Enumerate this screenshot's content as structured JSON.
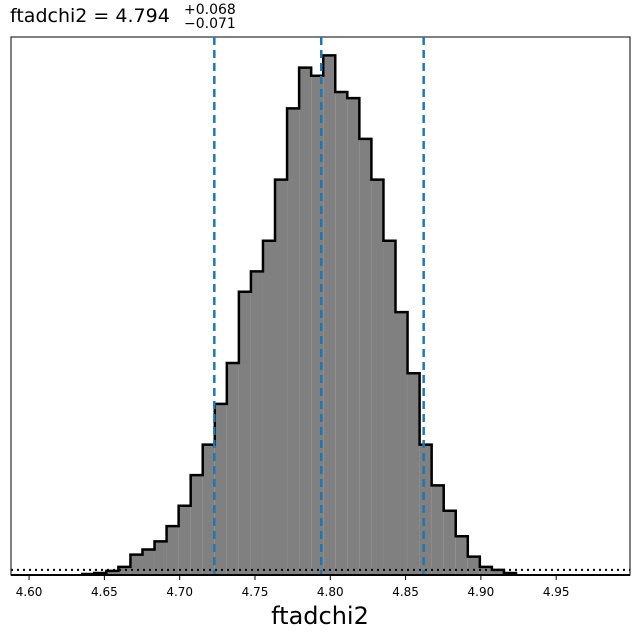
{
  "chart_data": {
    "type": "histogram",
    "title": {
      "parameter": "ftadchi2",
      "equals": "=",
      "value": "4.794",
      "upper_err": "+0.068",
      "lower_err": "−0.071"
    },
    "xlabel": "ftadchi2",
    "ylabel": "",
    "xlim": [
      4.588,
      4.999
    ],
    "ylim": [
      0,
      528
    ],
    "xticks": [
      4.6,
      4.65,
      4.7,
      4.75,
      4.8,
      4.85,
      4.9,
      4.95
    ],
    "xtick_labels": [
      "4.60",
      "4.65",
      "4.70",
      "4.75",
      "4.80",
      "4.85",
      "4.90",
      "4.95"
    ],
    "yticks_shown": false,
    "grid": false,
    "bin_edges": [
      4.6353,
      4.6433,
      4.6513,
      4.6593,
      4.6673,
      4.6753,
      4.6833,
      4.6913,
      4.6993,
      4.7073,
      4.7153,
      4.7233,
      4.7313,
      4.7393,
      4.7473,
      4.7553,
      4.7633,
      4.7713,
      4.7793,
      4.7873,
      4.7953,
      4.8033,
      4.8113,
      4.8193,
      4.8273,
      4.8353,
      4.8433,
      4.8513,
      4.8593,
      4.8673,
      4.8753,
      4.8833,
      4.8913,
      4.8993,
      4.9073,
      4.9153,
      4.9233
    ],
    "counts": [
      1,
      2,
      4,
      8,
      20,
      25,
      33,
      48,
      68,
      98,
      128,
      168,
      208,
      278,
      298,
      328,
      388,
      458,
      498,
      490,
      510,
      474,
      468,
      428,
      388,
      328,
      258,
      198,
      128,
      88,
      63,
      38,
      18,
      8,
      5,
      2
    ],
    "fill_color": "#808080",
    "edge_color": "#000000",
    "quantile_lines": {
      "values": [
        4.723,
        4.794,
        4.862
      ],
      "color": "#1f77b4",
      "style": "dashed"
    },
    "baseline": {
      "value": 5,
      "color": "#000000",
      "style": "dotted"
    }
  }
}
